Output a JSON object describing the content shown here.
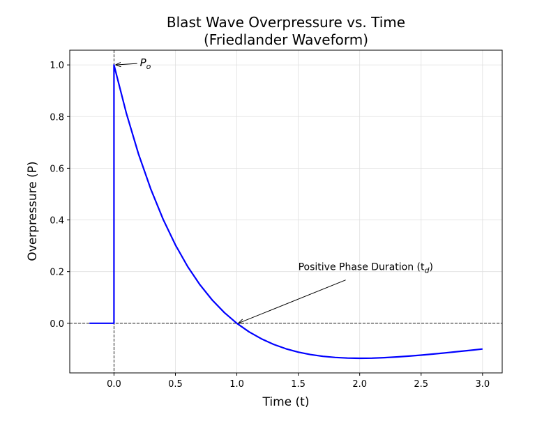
{
  "chart_data": {
    "type": "line",
    "title": "Blast Wave Overpressure vs. Time",
    "subtitle": "(Friedlander Waveform)",
    "xlabel": "Time (t)",
    "ylabel": "Overpressure (P)",
    "xlim": [
      -0.36,
      3.16
    ],
    "ylim": [
      -0.192,
      1.057
    ],
    "xticks": [
      0.0,
      0.5,
      1.0,
      1.5,
      2.0,
      2.5,
      3.0
    ],
    "xtick_labels": [
      "0.0",
      "0.5",
      "1.0",
      "1.5",
      "2.0",
      "2.5",
      "3.0"
    ],
    "yticks": [
      0.0,
      0.2,
      0.4,
      0.6,
      0.8,
      1.0
    ],
    "ytick_labels": [
      "0.0",
      "0.2",
      "0.4",
      "0.6",
      "0.8",
      "1.0"
    ],
    "grid": true,
    "reference_lines": {
      "horizontal_y": 0,
      "vertical_x": 0,
      "style": "dashed",
      "color": "#000000"
    },
    "series": [
      {
        "color": "#0000ff",
        "x": [
          -0.2,
          0,
          0,
          0.1,
          0.2,
          0.3,
          0.4,
          0.5,
          0.6,
          0.7,
          0.8,
          0.9,
          1.0,
          1.1,
          1.2,
          1.3,
          1.4,
          1.5,
          1.6,
          1.7,
          1.8,
          1.9,
          2.0,
          2.1,
          2.2,
          2.3,
          2.4,
          2.5,
          2.6,
          2.7,
          2.8,
          2.9,
          3.0
        ],
        "y": [
          0,
          0,
          1.0,
          0.8144,
          0.655,
          0.5186,
          0.4022,
          0.3033,
          0.2195,
          0.149,
          0.0899,
          0.0407,
          0.0,
          -0.0333,
          -0.0602,
          -0.0818,
          -0.0986,
          -0.1116,
          -0.1211,
          -0.1279,
          -0.1322,
          -0.1346,
          -0.1353,
          -0.1347,
          -0.133,
          -0.1303,
          -0.127,
          -0.1231,
          -0.1188,
          -0.1143,
          -0.1095,
          -0.1045,
          -0.0996
        ]
      }
    ],
    "annotations": [
      {
        "text": "P",
        "subscript": "o",
        "xy": [
          0,
          1.0
        ],
        "xytext": [
          0.2,
          1.0
        ]
      },
      {
        "text": "Positive Phase Duration (t",
        "subscript": "d",
        "suffix": ")",
        "xy": [
          1.0,
          0.0
        ],
        "xytext": [
          1.5,
          0.2
        ]
      }
    ]
  }
}
